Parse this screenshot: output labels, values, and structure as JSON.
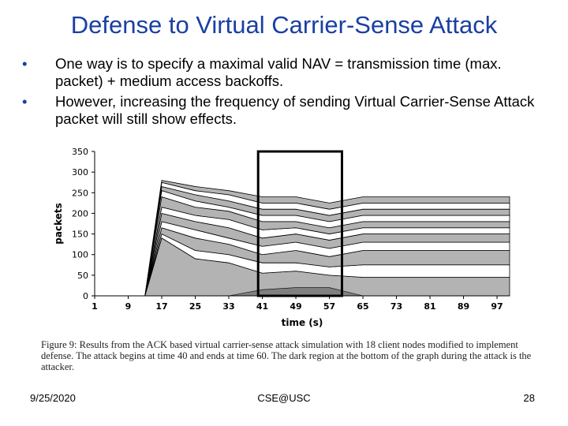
{
  "slide": {
    "title": "Defense to Virtual Carrier-Sense Attack",
    "bullets": [
      "One way is to specify a maximal valid NAV = transmission time (max. packet) + medium access backoffs.",
      "However, increasing the frequency of sending Virtual Carrier-Sense Attack packet will still show effects."
    ],
    "caption": "Figure 9: Results from the ACK based virtual carrier-sense attack simulation with 18 client nodes modified to implement defense. The attack begins at time 40 and ends at time 60. The dark region at the bottom of the graph during the attack is the attacker.",
    "footer": {
      "date": "9/25/2020",
      "center": "CSE@USC",
      "page": "28"
    }
  },
  "chart_data": {
    "type": "area",
    "title": "",
    "xlabel": "time (s)",
    "ylabel": "packets",
    "xlim": [
      1,
      100
    ],
    "ylim": [
      0,
      350
    ],
    "x_ticks": [
      1,
      9,
      17,
      25,
      33,
      41,
      49,
      57,
      65,
      73,
      81,
      89,
      97
    ],
    "y_ticks": [
      0,
      50,
      100,
      150,
      200,
      250,
      300,
      350
    ],
    "highlight_interval": [
      40,
      60
    ],
    "grid": false,
    "legend": "none",
    "stack_tops_sampled": {
      "x": [
        1,
        7,
        13,
        17,
        25,
        33,
        41,
        49,
        57,
        65,
        73,
        81,
        89,
        97,
        100
      ],
      "bands": [
        [
          0,
          0,
          0,
          140,
          90,
          80,
          55,
          60,
          50,
          45,
          45,
          45,
          45,
          45,
          45
        ],
        [
          0,
          0,
          0,
          150,
          110,
          100,
          80,
          80,
          70,
          75,
          75,
          75,
          75,
          75,
          75
        ],
        [
          0,
          0,
          0,
          165,
          140,
          125,
          100,
          110,
          95,
          110,
          110,
          110,
          110,
          110,
          110
        ],
        [
          0,
          0,
          0,
          180,
          160,
          140,
          120,
          130,
          115,
          130,
          130,
          130,
          130,
          130,
          130
        ],
        [
          0,
          0,
          0,
          200,
          180,
          165,
          140,
          150,
          135,
          150,
          150,
          150,
          150,
          150,
          150
        ],
        [
          0,
          0,
          0,
          215,
          195,
          185,
          160,
          165,
          150,
          165,
          165,
          165,
          165,
          165,
          165
        ],
        [
          0,
          0,
          0,
          240,
          215,
          205,
          180,
          180,
          165,
          180,
          180,
          180,
          180,
          180,
          180
        ],
        [
          0,
          0,
          0,
          255,
          230,
          215,
          195,
          195,
          180,
          195,
          195,
          195,
          195,
          195,
          195
        ],
        [
          0,
          0,
          0,
          265,
          245,
          230,
          210,
          210,
          195,
          210,
          210,
          210,
          210,
          210,
          210
        ],
        [
          0,
          0,
          0,
          275,
          255,
          245,
          225,
          225,
          210,
          225,
          225,
          225,
          225,
          225,
          225
        ],
        [
          0,
          0,
          0,
          280,
          265,
          255,
          240,
          240,
          225,
          240,
          240,
          240,
          240,
          240,
          240
        ]
      ],
      "attacker_band": [
        0,
        0,
        0,
        0,
        0,
        0,
        15,
        20,
        20,
        0,
        0,
        0,
        0,
        0,
        0
      ]
    },
    "colors": {
      "fill_gray": "#b3b3b3",
      "fill_white": "#ffffff",
      "attacker": "#808080",
      "highlight_box": "#000000",
      "title": "#1a3fa3"
    }
  }
}
